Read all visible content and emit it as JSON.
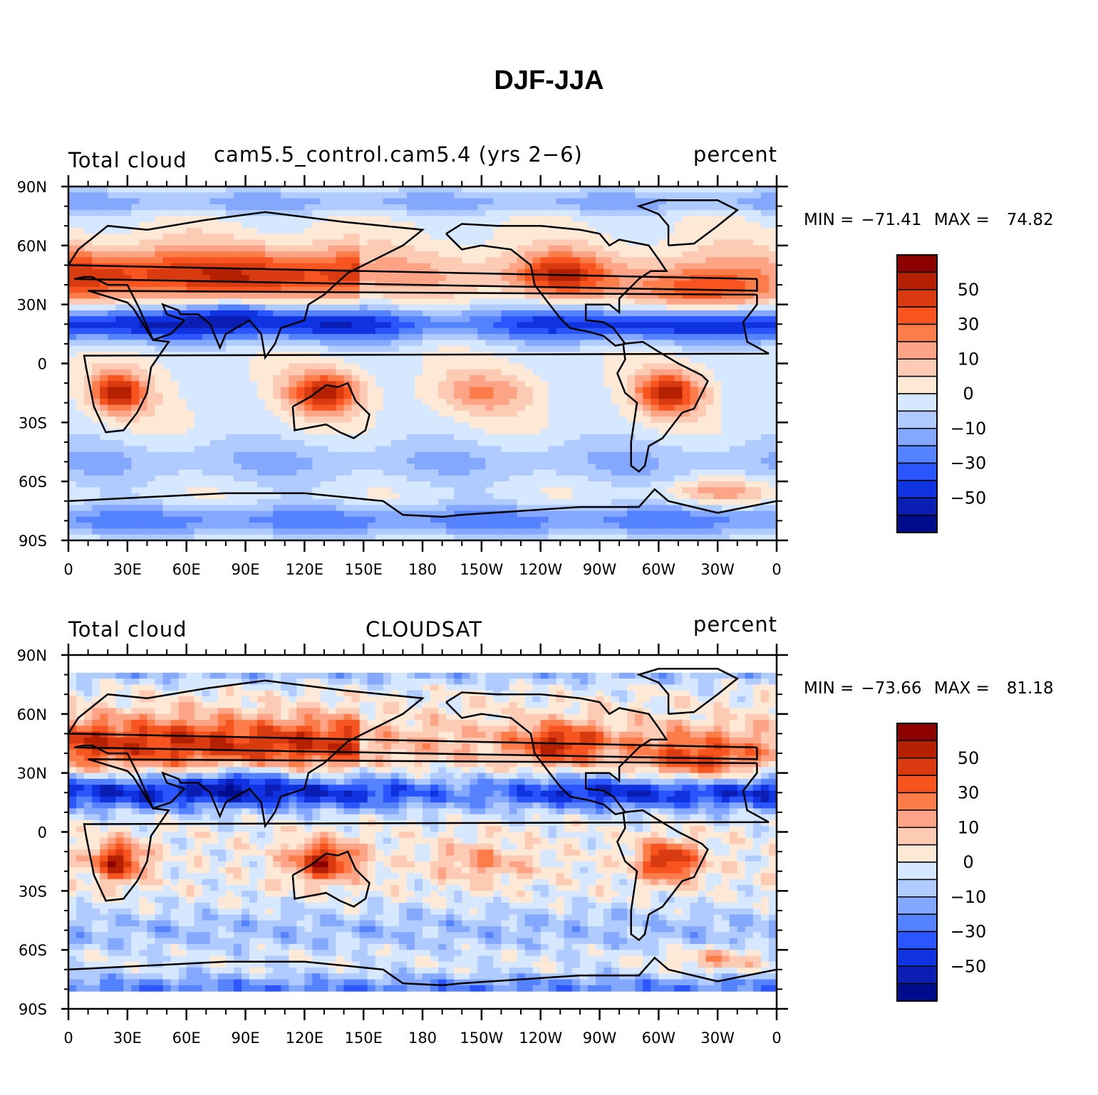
{
  "title": "DJF-JJA",
  "lat_labels": [
    "90N",
    "60N",
    "30N",
    "0",
    "30S",
    "60S",
    "90S"
  ],
  "lon_labels": [
    "0",
    "30E",
    "60E",
    "90E",
    "120E",
    "150E",
    "180",
    "150W",
    "120W",
    "90W",
    "60W",
    "30W",
    "0"
  ],
  "colorbar": {
    "labels": [
      "50",
      "30",
      "10",
      "0",
      "−10",
      "−30",
      "−50"
    ],
    "colors": [
      "#8c0000",
      "#b52000",
      "#d93a0f",
      "#f7541f",
      "#fc7c4a",
      "#fda386",
      "#fdcbb3",
      "#fee8d6",
      "#d6e8ff",
      "#b0cbff",
      "#85a8ff",
      "#5582ff",
      "#2a55ff",
      "#0f33e0",
      "#0a1eb4",
      "#000c8c"
    ]
  },
  "panels": [
    {
      "left_label": "Total cloud",
      "center_label": "cam5.5_control.cam5.4 (yrs 2−6)",
      "right_label": "percent",
      "min_label": "MIN =",
      "min_value": "−71.41",
      "max_label": "MAX =",
      "max_value": "74.82"
    },
    {
      "left_label": "Total cloud",
      "center_label": "CLOUDSAT",
      "right_label": "percent",
      "min_label": "MIN =",
      "min_value": "−73.66",
      "max_label": "MAX =",
      "max_value": "81.18"
    }
  ]
}
